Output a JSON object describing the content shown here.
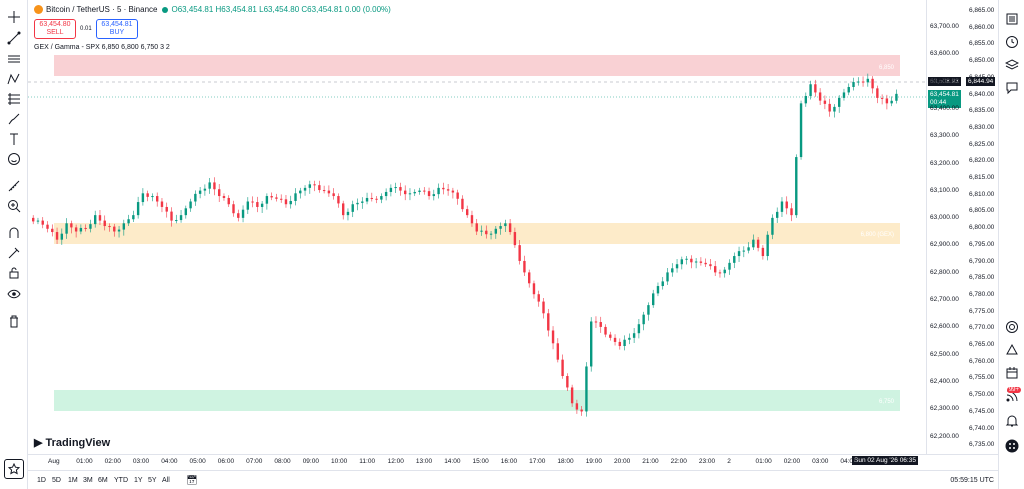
{
  "header": {
    "symbol": "Bitcoin / TetherUS · 5 · Binance",
    "o": "O63,454.81",
    "h": "H63,454.81",
    "l": "L63,454.80",
    "c": "C63,454.81",
    "chg": "0.00 (0.00%)"
  },
  "trade": {
    "sell_price": "63,454.80",
    "sell_label": "SELL",
    "spread": "0.01",
    "buy_price": "63,454.81",
    "buy_label": "BUY"
  },
  "indicator": "GEX / Gamma - SPX 6,850 6,800 6,750 3 2",
  "logo_text": "TradingView",
  "colors": {
    "up": "#089981",
    "down": "#f23645",
    "red_zone": "#f7c1c6",
    "yellow_zone": "#fde8bf",
    "green_zone": "#c3f0d9"
  },
  "zones": [
    {
      "name": "red",
      "label": "6,850",
      "value": 6850
    },
    {
      "name": "yellow",
      "label": "6,800 (GEX)",
      "value": 6800
    },
    {
      "name": "green",
      "label": "6,750",
      "value": 6750
    }
  ],
  "left_scale": [
    "63,700.00",
    "63,600.00",
    "63,500.00",
    "63,400.00",
    "63,300.00",
    "63,200.00",
    "63,100.00",
    "63,000.00",
    "62,900.00",
    "62,800.00",
    "62,700.00",
    "62,600.00",
    "62,500.00",
    "62,400.00",
    "62,300.00",
    "62,200.00"
  ],
  "right_scale": [
    "6,865.00",
    "6,860.00",
    "6,855.00",
    "6,850.00",
    "6,845.00",
    "6,840.00",
    "6,835.00",
    "6,830.00",
    "6,825.00",
    "6,820.00",
    "6,815.00",
    "6,810.00",
    "6,805.00",
    "6,800.00",
    "6,795.00",
    "6,790.00",
    "6,785.00",
    "6,780.00",
    "6,775.00",
    "6,770.00",
    "6,765.00",
    "6,760.00",
    "6,755.00",
    "6,750.00",
    "6,745.00",
    "6,740.00",
    "6,735.00"
  ],
  "price_tags": {
    "crosshair_left": "63,508.93",
    "crosshair_right": "6,844.94",
    "last_price": "63,454.81",
    "countdown": "00:44"
  },
  "time_axis": [
    "Aug",
    "01:00",
    "02:00",
    "03:00",
    "04:00",
    "05:00",
    "06:00",
    "07:00",
    "08:00",
    "09:00",
    "10:00",
    "11:00",
    "12:00",
    "13:00",
    "14:00",
    "15:00",
    "16:00",
    "17:00",
    "18:00",
    "19:00",
    "20:00",
    "21:00",
    "22:00",
    "23:00",
    "2",
    "01:00",
    "02:00",
    "03:00",
    "04:00"
  ],
  "crosshair_time": "Sun 02 Aug '26   06:35",
  "ranges": [
    "1D",
    "5D",
    "1M",
    "3M",
    "6M",
    "YTD",
    "1Y",
    "5Y",
    "All"
  ],
  "clock": "05:59:15 UTC",
  "notifications": "99+",
  "chart_data": {
    "type": "candlestick",
    "ylim": [
      62200,
      63750
    ],
    "close_path": [
      62990,
      62960,
      62920,
      62980,
      62950,
      62960,
      63010,
      62970,
      62950,
      62980,
      63010,
      63090,
      63080,
      63040,
      62990,
      63010,
      63060,
      63100,
      63130,
      63080,
      63050,
      63000,
      63060,
      63040,
      63080,
      63070,
      63050,
      63090,
      63110,
      63120,
      63100,
      63080,
      63010,
      63050,
      63060,
      63070,
      63080,
      63110,
      63100,
      63090,
      63100,
      63080,
      63110,
      63100,
      63070,
      63010,
      62950,
      62940,
      62960,
      62980,
      62900,
      62800,
      62720,
      62650,
      62540,
      62420,
      62320,
      62290,
      62620,
      62600,
      62560,
      62530,
      62560,
      62610,
      62680,
      62750,
      62800,
      62830,
      62850,
      62840,
      62830,
      62800,
      62810,
      62860,
      62880,
      62920,
      62860,
      63000,
      63060,
      63010,
      63420,
      63490,
      63430,
      63390,
      63440,
      63480,
      63500,
      63510,
      63440,
      63420,
      63454.81
    ],
    "last_price": 63454.81
  }
}
